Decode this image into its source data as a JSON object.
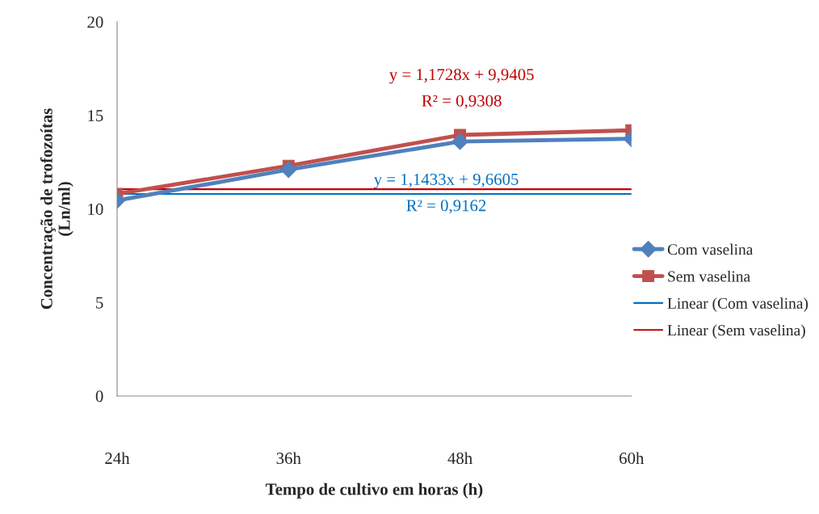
{
  "chart_data": {
    "type": "line",
    "xlabel": "Tempo de cultivo em horas (h)",
    "ylabel": "Concentração de trofozoítas\n(Ln/ml)",
    "categories": [
      "24h",
      "36h",
      "48h",
      "60h"
    ],
    "series": [
      {
        "name": "Com vaselina",
        "color": "#4f81bd",
        "marker": "diamond",
        "values": [
          10.45,
          12.1,
          13.6,
          13.75
        ]
      },
      {
        "name": "Sem vaselina",
        "color": "#c0504d",
        "marker": "square",
        "values": [
          10.8,
          12.3,
          13.95,
          14.2
        ]
      },
      {
        "name": "Linear (Com vaselina)",
        "color": "#0070c0",
        "marker": "none",
        "values": [
          10.8,
          10.8,
          10.8,
          10.8
        ]
      },
      {
        "name": "Linear (Sem vaselina)",
        "color": "#c00000",
        "marker": "none",
        "values": [
          11.05,
          11.05,
          11.05,
          11.05
        ]
      }
    ],
    "ylim": [
      0,
      20
    ],
    "yticks": [
      0,
      5,
      10,
      15,
      20
    ],
    "grid": false,
    "legend": "right",
    "annotations": [
      "y = 1,1728x + 9,9405",
      "R² = 0,9308",
      "y = 1,1433x + 9,6605",
      "R² = 0,9162"
    ]
  }
}
